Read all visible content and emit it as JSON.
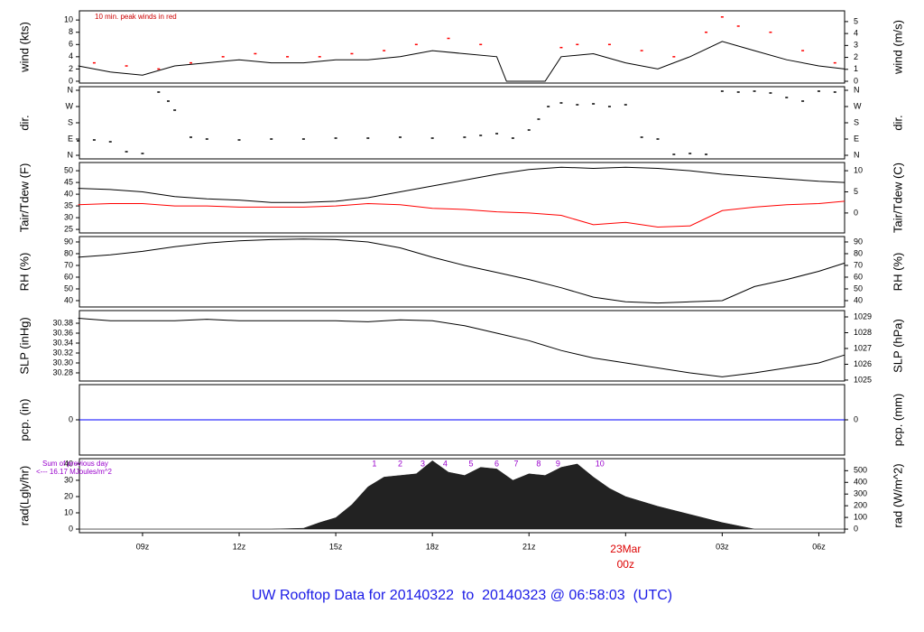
{
  "title": "UW Rooftop Data for 20140322  to  20140323 @ 06:58:03  (UTC)",
  "chart_data": [
    {
      "type": "line",
      "ylabel": "wind (kts)",
      "y2label": "wind (m/s)",
      "note": "10 min. peak winds in red",
      "xlim": [
        7.04,
        30.8
      ],
      "ylim": [
        -0.3,
        11.5
      ],
      "yticks": [
        0,
        2,
        4,
        6,
        8,
        10
      ],
      "y2lim": [
        -0.15,
        5.9
      ],
      "y2ticks": [
        0,
        1,
        2,
        3,
        4,
        5
      ],
      "series": [
        {
          "color": "#000000",
          "style": "line",
          "x": [
            7,
            8,
            9,
            10,
            11,
            12,
            13,
            14,
            15,
            16,
            17,
            18,
            19,
            20,
            20.3,
            21.5,
            22,
            23,
            24,
            25,
            26,
            27,
            28,
            29,
            30,
            30.8
          ],
          "values": [
            2.5,
            1.5,
            1,
            2.5,
            3,
            3.5,
            3,
            3,
            3.5,
            3.5,
            4,
            5,
            4.5,
            4,
            0,
            0,
            4,
            4.5,
            3,
            2,
            4,
            6.5,
            5,
            3.5,
            2.5,
            2
          ]
        },
        {
          "color": "#ff0000",
          "style": "points",
          "x": [
            7.5,
            8.5,
            9.5,
            10.5,
            11.5,
            12.5,
            13.5,
            14.5,
            15.5,
            16.5,
            17.5,
            18.5,
            19.5,
            22,
            22.5,
            23.5,
            24.5,
            25.5,
            26.5,
            27,
            27.5,
            28.5,
            29.5,
            30.5
          ],
          "values": [
            3,
            2.5,
            2,
            3,
            4,
            4.5,
            4,
            4,
            4.5,
            5,
            6,
            7,
            6,
            5.5,
            6,
            6,
            5,
            4,
            8,
            10.5,
            9,
            8,
            5,
            3
          ]
        }
      ]
    },
    {
      "type": "scatter",
      "ylabel": "dir.",
      "y2label": "dir.",
      "xlim": [
        7.04,
        30.8
      ],
      "ylim": [
        -20,
        380
      ],
      "yticks": [
        {
          "value": 0,
          "label": "N"
        },
        {
          "value": 90,
          "label": "E"
        },
        {
          "value": 180,
          "label": "S"
        },
        {
          "value": 270,
          "label": "W"
        },
        {
          "value": 360,
          "label": "N"
        }
      ],
      "y2lim": [
        -20,
        380
      ],
      "y2ticks": [
        {
          "value": 0,
          "label": "N"
        },
        {
          "value": 90,
          "label": "E"
        },
        {
          "value": 180,
          "label": "S"
        },
        {
          "value": 270,
          "label": "W"
        },
        {
          "value": 360,
          "label": "N"
        }
      ],
      "series": [
        {
          "color": "#000000",
          "style": "points",
          "x": [
            7,
            7.5,
            8,
            8.5,
            9,
            9.5,
            9.8,
            10,
            10.5,
            11,
            12,
            13,
            14,
            15,
            16,
            17,
            18,
            19,
            19.5,
            20,
            20.5,
            21,
            21.3,
            21.6,
            22,
            22.5,
            23,
            23.5,
            24,
            24.5,
            25,
            25.5,
            26,
            26.5,
            27,
            27.5,
            28,
            28.5,
            29,
            29.5,
            30,
            30.5
          ],
          "values": [
            80,
            85,
            75,
            20,
            10,
            350,
            300,
            250,
            100,
            90,
            85,
            90,
            90,
            95,
            95,
            100,
            95,
            100,
            110,
            120,
            95,
            140,
            200,
            270,
            290,
            280,
            285,
            270,
            280,
            100,
            90,
            5,
            10,
            5,
            355,
            350,
            355,
            345,
            320,
            300,
            355,
            350
          ]
        }
      ]
    },
    {
      "type": "line",
      "ylabel": "Tair/Tdew (F)",
      "y2label": "Tair/Tdew (C)",
      "xlim": [
        7.04,
        30.8
      ],
      "ylim": [
        23.5,
        53.5
      ],
      "yticks": [
        25,
        30,
        35,
        40,
        45,
        50
      ],
      "y2lim": [
        -4.72,
        11.94
      ],
      "y2ticks": [
        0,
        5,
        10
      ],
      "series": [
        {
          "color": "#000000",
          "style": "line",
          "x": [
            7,
            8,
            9,
            10,
            11,
            12,
            13,
            14,
            15,
            16,
            17,
            18,
            19,
            20,
            21,
            22,
            23,
            24,
            25,
            26,
            27,
            28,
            29,
            30,
            30.8
          ],
          "values": [
            42.5,
            42,
            41,
            39,
            38,
            37.5,
            36.5,
            36.5,
            37,
            38.5,
            41,
            43.5,
            46,
            48.5,
            50.5,
            51.5,
            51,
            51.5,
            51,
            50,
            48.5,
            47.5,
            46.5,
            45.5,
            45
          ]
        },
        {
          "color": "#ff0000",
          "style": "line",
          "x": [
            7,
            8,
            9,
            10,
            11,
            12,
            13,
            14,
            15,
            16,
            17,
            18,
            19,
            20,
            21,
            22,
            23,
            24,
            25,
            26,
            27,
            28,
            29,
            30,
            30.8
          ],
          "values": [
            35.5,
            36,
            36,
            35,
            35,
            34.5,
            34.5,
            34.5,
            35,
            36,
            35.5,
            34,
            33.5,
            32.5,
            32,
            31,
            27,
            28,
            26,
            26.5,
            33,
            34.5,
            35.5,
            36,
            37
          ]
        }
      ]
    },
    {
      "type": "line",
      "ylabel": "RH (%)",
      "y2label": "RH (%)",
      "xlim": [
        7.04,
        30.8
      ],
      "ylim": [
        34.6,
        94.6
      ],
      "yticks": [
        40,
        50,
        60,
        70,
        80,
        90
      ],
      "y2lim": [
        34.6,
        94.6
      ],
      "y2ticks": [
        40,
        50,
        60,
        70,
        80,
        90
      ],
      "series": [
        {
          "color": "#000000",
          "style": "line",
          "x": [
            7,
            8,
            9,
            10,
            11,
            12,
            13,
            14,
            15,
            16,
            17,
            18,
            19,
            20,
            21,
            22,
            23,
            24,
            25,
            26,
            27,
            28,
            29,
            30,
            30.8
          ],
          "values": [
            77,
            79,
            82,
            86,
            89,
            91,
            92,
            92.5,
            92,
            90,
            85,
            77,
            70,
            64,
            58,
            51,
            43,
            39,
            38,
            39,
            40,
            52,
            58,
            65,
            72
          ]
        }
      ]
    },
    {
      "type": "line",
      "ylabel": "SLP (inHg)",
      "y2label": "SLP (hPa)",
      "xlim": [
        7.04,
        30.8
      ],
      "ylim": [
        30.2636,
        30.4055
      ],
      "yticks": [
        30.28,
        {
          "value": 30.3,
          "label": "30.30"
        },
        30.32,
        30.34,
        30.36,
        30.38
      ],
      "y2lim": [
        1024.94,
        1029.4
      ],
      "y2ticks": [
        1025,
        1026,
        1027,
        1028,
        1029
      ],
      "series": [
        {
          "color": "#000000",
          "style": "line",
          "x": [
            7,
            8,
            9,
            10,
            11,
            12,
            13,
            14,
            15,
            16,
            17,
            18,
            19,
            20,
            21,
            22,
            23,
            24,
            25,
            26,
            27,
            28,
            29,
            30,
            30.8
          ],
          "values": [
            30.39,
            30.385,
            30.385,
            30.385,
            30.388,
            30.385,
            30.385,
            30.385,
            30.385,
            30.383,
            30.387,
            30.385,
            30.375,
            30.36,
            30.345,
            30.325,
            30.31,
            30.3,
            30.29,
            30.28,
            30.272,
            30.28,
            30.29,
            30.3,
            30.316
          ]
        }
      ]
    },
    {
      "type": "line",
      "ylabel": "pcp. (in)",
      "y2label": "pcp. (mm)",
      "xlim": [
        7.04,
        30.8
      ],
      "ylim": [
        -0.1,
        0.1
      ],
      "yticks": [
        0
      ],
      "y2lim": [
        -2.54,
        2.54
      ],
      "y2ticks": [
        0
      ],
      "series": [
        {
          "color": "#0000ff",
          "style": "line",
          "x": [
            7.04,
            30.8
          ],
          "values": [
            0,
            0
          ]
        }
      ]
    },
    {
      "type": "area",
      "ylabel": "rad(Lgly/hr)",
      "y2label": "rad (W/m^2)",
      "notes": [
        "Sum of previous day",
        "<--- 16.17 MJoules/m^2"
      ],
      "xlim": [
        7.04,
        30.8
      ],
      "ylim": [
        -2.2,
        43.3
      ],
      "yticks": [
        0,
        10,
        20,
        30,
        40
      ],
      "y2lim": [
        -30.6,
        603
      ],
      "y2ticks": [
        0,
        100,
        200,
        300,
        400,
        500
      ],
      "xticks": [
        {
          "value": 9,
          "label": "09z"
        },
        {
          "value": 12,
          "label": "12z"
        },
        {
          "value": 15,
          "label": "15z"
        },
        {
          "value": 18,
          "label": "18z"
        },
        {
          "value": 21,
          "label": "21z"
        },
        {
          "value": 24,
          "label": "00z"
        },
        {
          "value": 27,
          "label": "03z"
        },
        {
          "value": 30,
          "label": "06z"
        }
      ],
      "date_marker": {
        "x": 24,
        "label": "23Mar"
      },
      "markers": {
        "x": [
          16.2,
          17,
          17.7,
          18.4,
          19.2,
          20,
          20.6,
          21.3,
          21.9,
          23.2
        ],
        "labels": [
          1,
          2,
          3,
          4,
          5,
          6,
          7,
          8,
          9,
          10
        ]
      },
      "series": [
        {
          "color": "#222222",
          "style": "area",
          "x": [
            7,
            13,
            14,
            14.5,
            15,
            15.5,
            16,
            16.5,
            17,
            17.5,
            18,
            18.5,
            19,
            19.5,
            20,
            20.5,
            21,
            21.5,
            22,
            22.5,
            23,
            23.5,
            24,
            25,
            26,
            27,
            28,
            30.8
          ],
          "values": [
            0,
            0,
            0.5,
            4,
            7,
            15,
            26,
            32,
            33,
            34,
            42,
            35,
            33,
            38,
            37,
            30,
            34,
            33,
            38,
            40,
            32,
            25,
            20,
            14,
            9,
            4,
            0,
            0
          ]
        }
      ]
    }
  ]
}
